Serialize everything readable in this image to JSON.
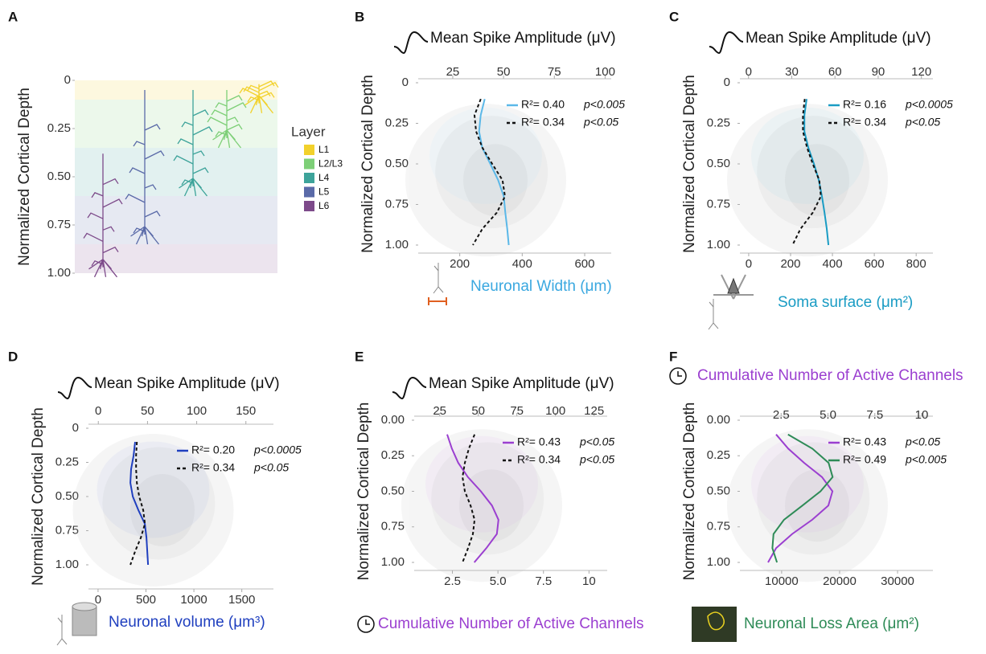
{
  "chart_data": [
    {
      "type": "layers",
      "label": "A",
      "ylabel": "Normalized Cortical Depth",
      "ylim": [
        0,
        1
      ],
      "y_inverted": true,
      "yticks": [
        0,
        0.25,
        {
          "value": 0.5,
          "label": "0.50"
        },
        0.75,
        {
          "value": 1,
          "label": "1.00"
        }
      ],
      "legend_title": "Layer",
      "layers": [
        {
          "name": "L1",
          "color": "#f2d12b",
          "range": [
            0,
            0.1
          ]
        },
        {
          "name": "L2/L3",
          "color": "#7dcf77",
          "range": [
            0.1,
            0.35
          ]
        },
        {
          "name": "L4",
          "color": "#3da39a",
          "range": [
            0.35,
            0.6
          ]
        },
        {
          "name": "L5",
          "color": "#5a6aa8",
          "range": [
            0.6,
            0.85
          ]
        },
        {
          "name": "L6",
          "color": "#7d4a8a",
          "range": [
            0.85,
            1
          ]
        }
      ]
    },
    {
      "type": "line",
      "label": "B",
      "title": "Mean Spike Amplitude (μV)",
      "title_color": "#111",
      "xlabel": "Neuronal Width (μm)",
      "xlabel_color": "#3aa8e0",
      "ylabel": "Normalized Cortical Depth",
      "xlim": [
        67,
        685
      ],
      "xticks": [
        200,
        400,
        600
      ],
      "x2lim": [
        8,
        103
      ],
      "x2ticks": [
        25,
        50,
        75,
        100
      ],
      "ylim": [
        0,
        1
      ],
      "y_inverted": true,
      "yticks": [
        0,
        0.25,
        {
          "value": 0.5,
          "label": "0.50"
        },
        0.75,
        {
          "value": 1,
          "label": "1.00"
        }
      ],
      "y": [
        0.1,
        0.2,
        0.3,
        0.4,
        0.5,
        0.6,
        0.7,
        0.8,
        0.9,
        1
      ],
      "series": [
        {
          "name": "R²= 0.40",
          "pvalue": "p<0.005",
          "color": "#5bb8e8",
          "style": "solid",
          "values": [
            280,
            267,
            262,
            272,
            298,
            323,
            341,
            346,
            352,
            357
          ]
        },
        {
          "name": "R²= 0.34",
          "pvalue": "p<0.05",
          "color": "#111111",
          "style": "dashed",
          "axis": "x2",
          "values": [
            38.8,
            35.7,
            36.5,
            39.6,
            44.4,
            49.5,
            50.7,
            46.7,
            39.6,
            34.9
          ]
        }
      ]
    },
    {
      "type": "line",
      "label": "C",
      "title": "Mean Spike Amplitude (μV)",
      "title_color": "#111",
      "xlabel": "Soma surface (μm²)",
      "xlabel_color": "#1a9cc4",
      "ylabel": "Normalized Cortical Depth",
      "xlim": [
        -42,
        880
      ],
      "xticks": [
        0,
        200,
        400,
        600,
        800
      ],
      "x2lim": [
        -6,
        128
      ],
      "x2ticks": [
        0,
        30,
        60,
        90,
        120
      ],
      "ylim": [
        0,
        1
      ],
      "y_inverted": true,
      "yticks": [
        0,
        0.25,
        {
          "value": 0.5,
          "label": "0.50"
        },
        0.75,
        {
          "value": 1,
          "label": "1.00"
        }
      ],
      "y": [
        0.1,
        0.2,
        0.3,
        0.4,
        0.5,
        0.6,
        0.7,
        0.8,
        0.9,
        1
      ],
      "series": [
        {
          "name": "R²= 0.16",
          "pvalue": "p<0.0005",
          "color": "#1a9cc4",
          "style": "solid",
          "values": [
            277,
            266,
            266,
            285,
            312,
            335,
            350,
            362,
            373,
            381
          ]
        },
        {
          "name": "R²= 0.34",
          "pvalue": "p<0.05",
          "color": "#111111",
          "style": "dashed",
          "axis": "x2",
          "values": [
            39,
            37.8,
            37.8,
            40.6,
            44.6,
            49.1,
            50.2,
            44.6,
            36.1,
            30.5
          ]
        }
      ]
    },
    {
      "type": "line",
      "label": "D",
      "title": "Mean Spike Amplitude (μV)",
      "title_color": "#111",
      "xlabel": "Neuronal volume (μm³)",
      "xlabel_color": "#1f3fbf",
      "ylabel": "Normalized Cortical Depth",
      "xlim": [
        -100,
        1830
      ],
      "xticks": [
        0,
        500,
        1000,
        1500
      ],
      "x2lim": [
        -10,
        178
      ],
      "x2ticks": [
        0,
        50,
        100,
        150
      ],
      "ylim": [
        0,
        1
      ],
      "y_inverted": true,
      "yticks": [
        0,
        0.25,
        {
          "value": 0.5,
          "label": "0.50"
        },
        0.75,
        {
          "value": 1,
          "label": "1.00"
        }
      ],
      "y": [
        0.1,
        0.2,
        0.3,
        0.4,
        0.5,
        0.6,
        0.7,
        0.8,
        0.9,
        1
      ],
      "series": [
        {
          "name": "R²= 0.20",
          "pvalue": "p<0.0005",
          "color": "#1f3fbf",
          "style": "solid",
          "values": [
            387,
            371,
            345,
            337,
            362,
            421,
            488,
            505,
            513,
            522
          ]
        },
        {
          "name": "R²= 0.34",
          "pvalue": "p<0.05",
          "color": "#111111",
          "style": "dashed",
          "axis": "x2",
          "values": [
            39.2,
            38.4,
            38.4,
            39.2,
            41.6,
            45.7,
            47.4,
            43.3,
            37.5,
            32.6
          ]
        }
      ]
    },
    {
      "type": "line",
      "label": "E",
      "title": "Mean Spike Amplitude (μV)",
      "title_color": "#111",
      "xlabel": "Cumulative Number of Active Channels",
      "xlabel_color": "#9b3fd0",
      "ylabel": "Normalized Cortical Depth",
      "xlim": [
        0.4,
        11
      ],
      "xticks": [
        2.5,
        {
          "value": 5,
          "label": "5.0"
        },
        7.5,
        10
      ],
      "x2lim": [
        8.5,
        133.5
      ],
      "x2ticks": [
        25,
        50,
        75,
        100,
        125
      ],
      "ylim": [
        0,
        1
      ],
      "y_inverted": true,
      "yticks": [
        {
          "value": 0,
          "label": "0.00"
        },
        0.25,
        {
          "value": 0.5,
          "label": "0.50"
        },
        0.75,
        {
          "value": 1,
          "label": "1.00"
        }
      ],
      "y": [
        0.1,
        0.2,
        0.3,
        0.4,
        0.5,
        0.6,
        0.7,
        0.8,
        0.9,
        1
      ],
      "series": [
        {
          "name": "R²= 0.43",
          "pvalue": "p<0.05",
          "color": "#9b3fd0",
          "style": "solid",
          "values": [
            2.21,
            2.47,
            2.82,
            3.35,
            4.06,
            4.67,
            5.03,
            4.94,
            4.36,
            3.7
          ]
        },
        {
          "name": "R²= 0.34",
          "pvalue": "p<0.05",
          "color": "#111111",
          "style": "dashed",
          "axis": "x2",
          "values": [
            47.6,
            43.9,
            41.3,
            39.8,
            41.3,
            45,
            47.6,
            46.5,
            43.4,
            39.8
          ]
        }
      ]
    },
    {
      "type": "line",
      "label": "F",
      "title": "Cumulative Number of Active Channels",
      "title_color": "#9b3fd0",
      "xlabel": "Neuronal Loss Area (μm²)",
      "xlabel_color": "#2e8b57",
      "ylabel": "Normalized Cortical Depth",
      "xlim": [
        2800,
        36100
      ],
      "xticks": [
        10000,
        20000,
        30000
      ],
      "x2lim": [
        0.3,
        10.6
      ],
      "x2ticks": [
        2.5,
        {
          "value": 5,
          "label": "5.0"
        },
        7.5,
        10
      ],
      "ylim": [
        0,
        1
      ],
      "y_inverted": true,
      "yticks": [
        {
          "value": 0,
          "label": "0.00"
        },
        0.25,
        {
          "value": 0.5,
          "label": "0.50"
        },
        0.75,
        {
          "value": 1,
          "label": "1.00"
        }
      ],
      "y": [
        0.1,
        0.2,
        0.3,
        0.4,
        0.5,
        0.6,
        0.7,
        0.8,
        0.9,
        1
      ],
      "series": [
        {
          "name": "R²= 0.43",
          "pvalue": "p<0.05",
          "color": "#9b3fd0",
          "style": "solid",
          "axis": "x2",
          "values": [
            2.23,
            2.88,
            3.73,
            4.68,
            5.24,
            5.02,
            4.16,
            3.09,
            2.23,
            1.8
          ]
        },
        {
          "name": "R²= 0.49",
          "pvalue": "p<0.005",
          "color": "#2e8b57",
          "style": "solid",
          "values": [
            11100,
            15300,
            18100,
            18800,
            16700,
            13600,
            10400,
            8600,
            8400,
            9200
          ]
        }
      ]
    }
  ]
}
